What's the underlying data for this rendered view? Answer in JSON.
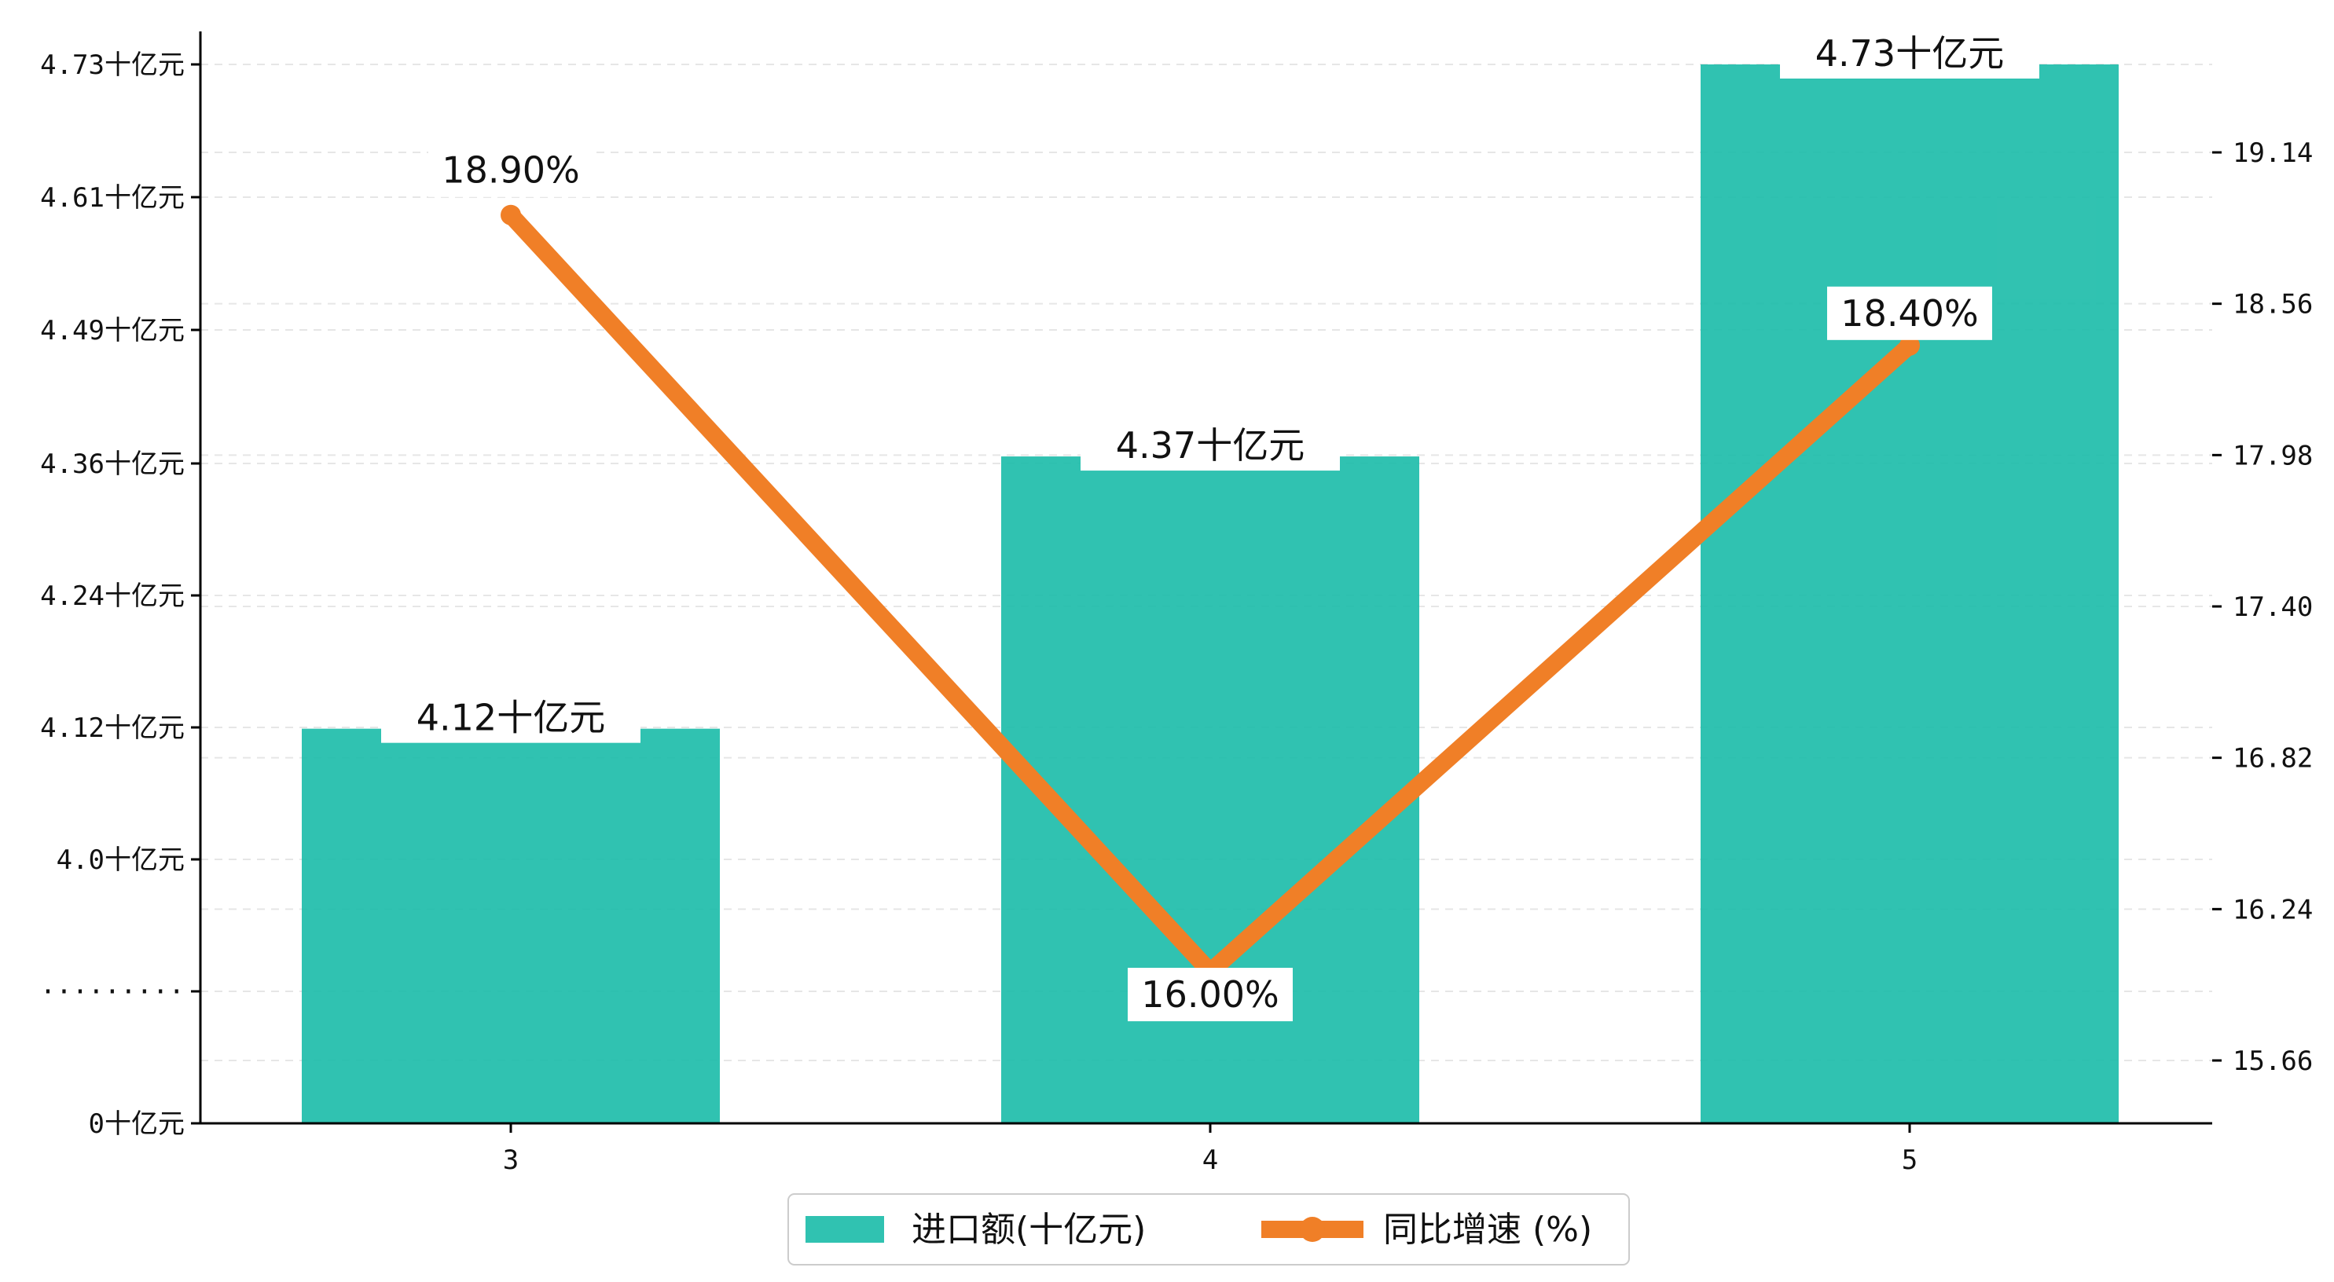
{
  "chart_data": {
    "type": "bar",
    "categories": [
      "3",
      "4",
      "5"
    ],
    "series": [
      {
        "name": "进口额(十亿元)",
        "type": "bar",
        "axis": "left",
        "values": [
          4.12,
          4.37,
          4.73
        ],
        "labels": [
          "4.12十亿元",
          "4.37十亿元",
          "4.73十亿元"
        ],
        "color": "#1ABBA8"
      },
      {
        "name": "同比增速 (%)",
        "type": "line",
        "axis": "right",
        "values": [
          18.9,
          16.0,
          18.4
        ],
        "labels": [
          "18.90%",
          "16.00%",
          "18.40%"
        ],
        "color": "#F07F27"
      }
    ],
    "y_left": {
      "tick_labels": [
        "0十亿元",
        "·········",
        "4.0十亿元",
        "4.12十亿元",
        "4.24十亿元",
        "4.36十亿元",
        "4.49十亿元",
        "4.61十亿元",
        "4.73十亿元"
      ],
      "broken_axis": true
    },
    "y_right": {
      "ticks": [
        15.66,
        16.24,
        16.82,
        17.4,
        17.98,
        18.56,
        19.14
      ],
      "tick_labels": [
        "15.66",
        "16.24",
        "16.82",
        "17.40",
        "17.98",
        "18.56",
        "19.14"
      ]
    },
    "grid": "horizontal dashed",
    "legend_position": "bottom-center"
  }
}
